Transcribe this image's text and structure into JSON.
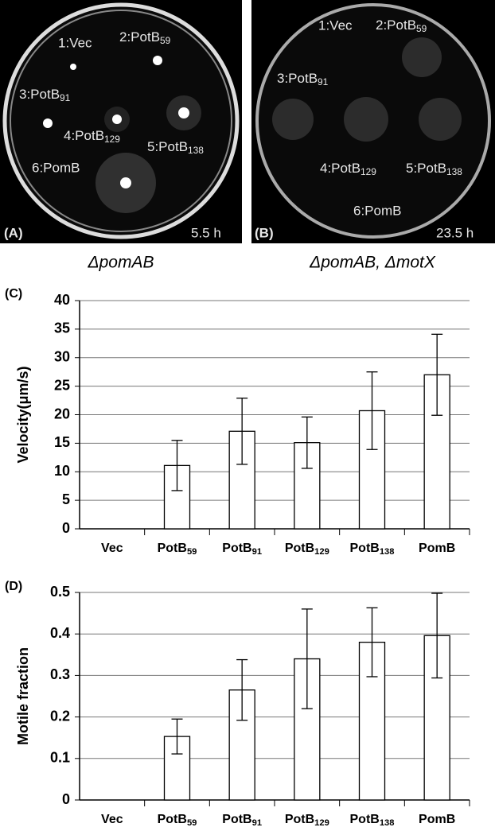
{
  "photos": [
    {
      "panel": "(A)",
      "time": "5.5 h",
      "caption": "ΔpomAB",
      "labels": [
        "1:Vec",
        "2:PotB59",
        "3:PotB91",
        "4:PotB129",
        "5:PotB138",
        "6:PomB"
      ]
    },
    {
      "panel": "(B)",
      "time": "23.5 h",
      "caption": "ΔpomAB, ΔmotX",
      "labels": [
        "1:Vec",
        "2:PotB59",
        "3:PotB91",
        "4:PotB129",
        "5:PotB138",
        "6:PomB"
      ]
    }
  ],
  "chart_data": [
    {
      "type": "bar",
      "panel": "(C)",
      "y_label": "Velocity(μm/s)",
      "categories": [
        "Vec",
        "PotB59",
        "PotB91",
        "PotB129",
        "PotB138",
        "PomB"
      ],
      "values": [
        0,
        11.1,
        17.1,
        15.1,
        20.7,
        27
      ],
      "errors": [
        null,
        4.4,
        5.8,
        4.5,
        6.8,
        7.1
      ],
      "color": "#ffffff",
      "ylim": [
        0,
        40
      ],
      "yticks": [
        0,
        5,
        10,
        15,
        20,
        25,
        30,
        35,
        40
      ],
      "grid": true
    },
    {
      "type": "bar",
      "panel": "(D)",
      "y_label": "Motile fraction",
      "categories": [
        "Vec",
        "PotB59",
        "PotB91",
        "PotB129",
        "PotB138",
        "PomB"
      ],
      "values": [
        0,
        0.153,
        0.265,
        0.34,
        0.38,
        0.396
      ],
      "errors": [
        null,
        0.042,
        0.073,
        0.12,
        0.083,
        0.102
      ],
      "color": "#ffffff",
      "ylim": [
        0,
        0.5
      ],
      "yticks": [
        0,
        0.1,
        0.2,
        0.3,
        0.4,
        0.5
      ],
      "grid": true
    }
  ]
}
